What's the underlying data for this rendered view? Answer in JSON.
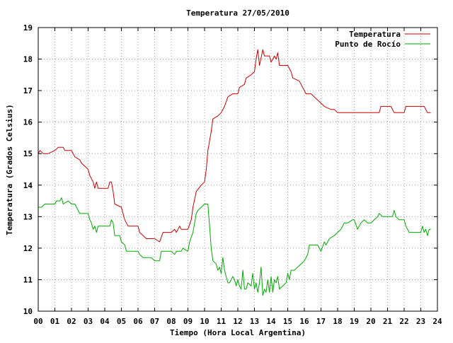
{
  "chart_data": {
    "type": "line",
    "title": "Temperatura 27/05/2010",
    "xlabel": "Tiempo (Hora Local Argentina)",
    "ylabel": "Temperatura (Grados Celsius)",
    "xlim": [
      0,
      24
    ],
    "ylim": [
      10,
      19
    ],
    "x_ticks": [
      "00",
      "01",
      "02",
      "03",
      "04",
      "05",
      "06",
      "07",
      "08",
      "09",
      "10",
      "11",
      "12",
      "13",
      "14",
      "15",
      "16",
      "17",
      "18",
      "19",
      "20",
      "21",
      "22",
      "23",
      "24"
    ],
    "y_ticks": [
      "10",
      "11",
      "12",
      "13",
      "14",
      "15",
      "16",
      "17",
      "18",
      "19"
    ],
    "grid": true,
    "legend_position": "top-right",
    "series": [
      {
        "name": "Temperatura",
        "color": "#cc0000",
        "points": [
          [
            0.0,
            15.0
          ],
          [
            0.1,
            15.1
          ],
          [
            0.3,
            15.0
          ],
          [
            0.6,
            15.0
          ],
          [
            1.0,
            15.1
          ],
          [
            1.2,
            15.2
          ],
          [
            1.5,
            15.2
          ],
          [
            1.6,
            15.1
          ],
          [
            2.0,
            15.1
          ],
          [
            2.2,
            14.9
          ],
          [
            2.5,
            14.8
          ],
          [
            2.6,
            14.7
          ],
          [
            2.8,
            14.6
          ],
          [
            3.0,
            14.5
          ],
          [
            3.1,
            14.3
          ],
          [
            3.3,
            14.1
          ],
          [
            3.4,
            13.9
          ],
          [
            3.5,
            14.1
          ],
          [
            3.6,
            13.9
          ],
          [
            4.0,
            13.9
          ],
          [
            4.2,
            13.9
          ],
          [
            4.3,
            14.1
          ],
          [
            4.4,
            14.1
          ],
          [
            4.5,
            13.8
          ],
          [
            4.6,
            13.4
          ],
          [
            5.0,
            13.3
          ],
          [
            5.2,
            12.9
          ],
          [
            5.4,
            12.7
          ],
          [
            5.8,
            12.7
          ],
          [
            6.0,
            12.7
          ],
          [
            6.1,
            12.5
          ],
          [
            6.3,
            12.4
          ],
          [
            6.5,
            12.3
          ],
          [
            7.0,
            12.3
          ],
          [
            7.3,
            12.2
          ],
          [
            7.5,
            12.5
          ],
          [
            8.0,
            12.5
          ],
          [
            8.2,
            12.6
          ],
          [
            8.3,
            12.5
          ],
          [
            8.5,
            12.7
          ],
          [
            8.6,
            12.6
          ],
          [
            9.0,
            12.6
          ],
          [
            9.2,
            12.9
          ],
          [
            9.3,
            13.3
          ],
          [
            9.5,
            13.8
          ],
          [
            9.8,
            14.0
          ],
          [
            10.0,
            14.1
          ],
          [
            10.1,
            14.5
          ],
          [
            10.2,
            15.1
          ],
          [
            10.4,
            15.7
          ],
          [
            10.5,
            16.1
          ],
          [
            10.8,
            16.2
          ],
          [
            11.0,
            16.3
          ],
          [
            11.2,
            16.5
          ],
          [
            11.4,
            16.8
          ],
          [
            11.7,
            16.9
          ],
          [
            12.0,
            16.9
          ],
          [
            12.1,
            17.1
          ],
          [
            12.4,
            17.2
          ],
          [
            12.5,
            17.4
          ],
          [
            12.8,
            17.5
          ],
          [
            13.0,
            17.6
          ],
          [
            13.1,
            18.0
          ],
          [
            13.2,
            18.3
          ],
          [
            13.3,
            17.8
          ],
          [
            13.5,
            18.3
          ],
          [
            13.6,
            18.1
          ],
          [
            13.9,
            18.1
          ],
          [
            14.0,
            17.9
          ],
          [
            14.2,
            18.1
          ],
          [
            14.3,
            18.0
          ],
          [
            14.4,
            18.2
          ],
          [
            14.5,
            17.8
          ],
          [
            15.0,
            17.8
          ],
          [
            15.2,
            17.6
          ],
          [
            15.3,
            17.4
          ],
          [
            15.7,
            17.3
          ],
          [
            15.9,
            17.1
          ],
          [
            16.0,
            17.0
          ],
          [
            16.1,
            16.9
          ],
          [
            16.4,
            16.9
          ],
          [
            16.8,
            16.7
          ],
          [
            17.0,
            16.6
          ],
          [
            17.2,
            16.5
          ],
          [
            17.6,
            16.4
          ],
          [
            17.8,
            16.4
          ],
          [
            18.0,
            16.3
          ],
          [
            19.0,
            16.3
          ],
          [
            20.0,
            16.3
          ],
          [
            20.5,
            16.3
          ],
          [
            20.6,
            16.5
          ],
          [
            21.2,
            16.5
          ],
          [
            21.4,
            16.3
          ],
          [
            22.0,
            16.3
          ],
          [
            22.1,
            16.5
          ],
          [
            22.3,
            16.5
          ],
          [
            23.0,
            16.5
          ],
          [
            23.2,
            16.5
          ],
          [
            23.4,
            16.3
          ],
          [
            23.6,
            16.3
          ]
        ]
      },
      {
        "name": "Punto de Rocío",
        "color": "#00aa00",
        "points": [
          [
            0.0,
            13.3
          ],
          [
            0.2,
            13.3
          ],
          [
            0.4,
            13.4
          ],
          [
            0.8,
            13.4
          ],
          [
            1.0,
            13.4
          ],
          [
            1.1,
            13.5
          ],
          [
            1.3,
            13.5
          ],
          [
            1.4,
            13.6
          ],
          [
            1.5,
            13.4
          ],
          [
            1.8,
            13.5
          ],
          [
            2.0,
            13.4
          ],
          [
            2.2,
            13.4
          ],
          [
            2.3,
            13.3
          ],
          [
            2.5,
            13.1
          ],
          [
            2.8,
            13.1
          ],
          [
            3.0,
            13.1
          ],
          [
            3.1,
            12.9
          ],
          [
            3.2,
            12.8
          ],
          [
            3.3,
            12.6
          ],
          [
            3.4,
            12.7
          ],
          [
            3.5,
            12.5
          ],
          [
            3.6,
            12.7
          ],
          [
            4.0,
            12.7
          ],
          [
            4.3,
            12.7
          ],
          [
            4.4,
            12.9
          ],
          [
            4.5,
            12.8
          ],
          [
            4.6,
            12.4
          ],
          [
            4.9,
            12.4
          ],
          [
            5.0,
            12.2
          ],
          [
            5.2,
            12.1
          ],
          [
            5.3,
            11.9
          ],
          [
            5.7,
            11.9
          ],
          [
            6.0,
            11.9
          ],
          [
            6.1,
            11.8
          ],
          [
            6.3,
            11.7
          ],
          [
            6.8,
            11.7
          ],
          [
            7.0,
            11.6
          ],
          [
            7.3,
            11.6
          ],
          [
            7.4,
            11.9
          ],
          [
            8.0,
            11.9
          ],
          [
            8.2,
            11.8
          ],
          [
            8.3,
            11.9
          ],
          [
            8.5,
            11.9
          ],
          [
            8.6,
            11.9
          ],
          [
            8.7,
            12.0
          ],
          [
            9.0,
            11.9
          ],
          [
            9.1,
            12.2
          ],
          [
            9.3,
            12.5
          ],
          [
            9.5,
            13.1
          ],
          [
            9.6,
            13.2
          ],
          [
            9.8,
            13.3
          ],
          [
            10.0,
            13.4
          ],
          [
            10.2,
            13.4
          ],
          [
            10.3,
            12.7
          ],
          [
            10.4,
            12.0
          ],
          [
            10.5,
            11.6
          ],
          [
            10.7,
            11.5
          ],
          [
            10.8,
            11.3
          ],
          [
            10.9,
            11.4
          ],
          [
            11.0,
            11.2
          ],
          [
            11.1,
            11.7
          ],
          [
            11.2,
            11.3
          ],
          [
            11.4,
            10.9
          ],
          [
            11.5,
            10.9
          ],
          [
            11.7,
            11.1
          ],
          [
            11.8,
            11.0
          ],
          [
            11.9,
            10.8
          ],
          [
            12.0,
            11.0
          ],
          [
            12.1,
            10.8
          ],
          [
            12.2,
            10.7
          ],
          [
            12.3,
            11.3
          ],
          [
            12.4,
            10.7
          ],
          [
            12.5,
            10.7
          ],
          [
            12.6,
            10.9
          ],
          [
            12.8,
            10.8
          ],
          [
            12.9,
            11.2
          ],
          [
            13.0,
            10.7
          ],
          [
            13.1,
            10.9
          ],
          [
            13.2,
            10.6
          ],
          [
            13.3,
            10.9
          ],
          [
            13.4,
            11.4
          ],
          [
            13.5,
            10.5
          ],
          [
            13.6,
            10.7
          ],
          [
            13.7,
            10.6
          ],
          [
            13.8,
            11.0
          ],
          [
            13.9,
            10.6
          ],
          [
            14.0,
            11.1
          ],
          [
            14.1,
            10.6
          ],
          [
            14.2,
            11.0
          ],
          [
            14.3,
            10.9
          ],
          [
            14.4,
            11.1
          ],
          [
            14.5,
            10.7
          ],
          [
            14.7,
            10.8
          ],
          [
            14.9,
            10.9
          ],
          [
            15.0,
            11.2
          ],
          [
            15.1,
            11.0
          ],
          [
            15.2,
            11.3
          ],
          [
            15.4,
            11.3
          ],
          [
            15.6,
            11.4
          ],
          [
            15.8,
            11.5
          ],
          [
            16.0,
            11.6
          ],
          [
            16.2,
            11.8
          ],
          [
            16.3,
            12.1
          ],
          [
            16.5,
            12.1
          ],
          [
            16.8,
            12.1
          ],
          [
            17.0,
            11.9
          ],
          [
            17.2,
            12.2
          ],
          [
            17.3,
            12.1
          ],
          [
            17.5,
            12.3
          ],
          [
            17.8,
            12.4
          ],
          [
            18.0,
            12.5
          ],
          [
            18.2,
            12.6
          ],
          [
            18.4,
            12.8
          ],
          [
            18.6,
            12.8
          ],
          [
            18.9,
            12.9
          ],
          [
            19.0,
            12.9
          ],
          [
            19.2,
            12.6
          ],
          [
            19.4,
            12.8
          ],
          [
            19.6,
            12.9
          ],
          [
            19.8,
            12.8
          ],
          [
            20.0,
            12.8
          ],
          [
            20.2,
            12.9
          ],
          [
            20.4,
            13.0
          ],
          [
            20.5,
            13.1
          ],
          [
            20.7,
            13.0
          ],
          [
            21.0,
            13.0
          ],
          [
            21.3,
            13.0
          ],
          [
            21.4,
            13.2
          ],
          [
            21.5,
            13.0
          ],
          [
            21.7,
            12.9
          ],
          [
            22.0,
            12.9
          ],
          [
            22.1,
            12.7
          ],
          [
            22.3,
            12.5
          ],
          [
            22.5,
            12.5
          ],
          [
            23.0,
            12.5
          ],
          [
            23.1,
            12.7
          ],
          [
            23.2,
            12.5
          ],
          [
            23.3,
            12.6
          ],
          [
            23.4,
            12.4
          ],
          [
            23.5,
            12.6
          ],
          [
            23.6,
            12.6
          ]
        ]
      }
    ]
  }
}
